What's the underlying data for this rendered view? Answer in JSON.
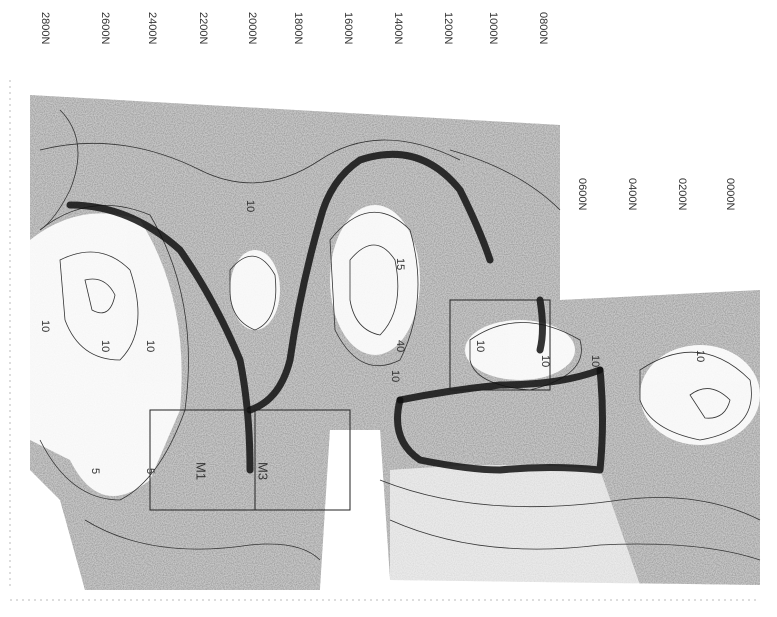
{
  "grid_lines_top": [
    "2800N",
    "2600N",
    "2400N",
    "2200N",
    "2000N",
    "1800N",
    "1600N",
    "1400N",
    "1200N",
    "1000N",
    "0800N"
  ],
  "grid_lines_right": [
    "0600N",
    "0400N",
    "0200N",
    "0000N"
  ],
  "markers": [
    "M1",
    "M3"
  ],
  "contour_labels": [
    "10",
    "10",
    "10",
    "5",
    "5",
    "10",
    "15",
    "40",
    "10",
    "10",
    "10",
    "10",
    "10"
  ]
}
